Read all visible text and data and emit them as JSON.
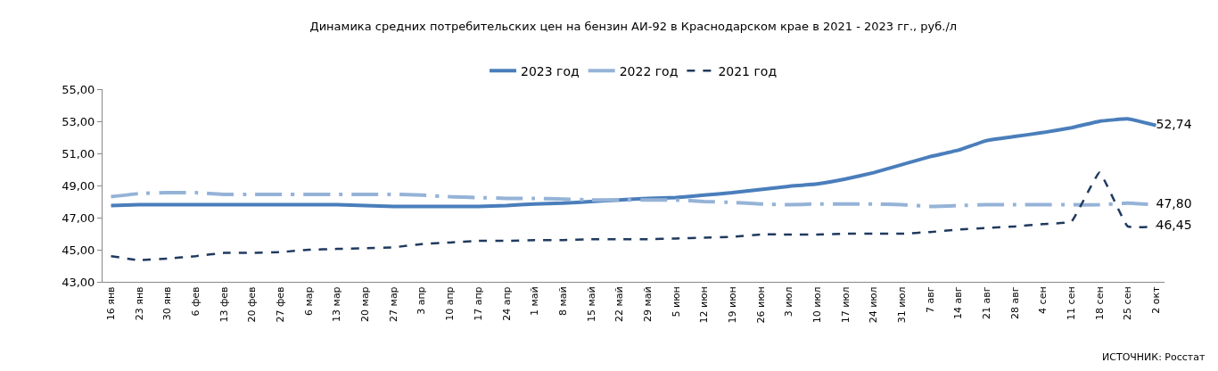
{
  "chart_data": {
    "type": "line",
    "title": "Динамика средних потребительских цен на бензин АИ-92 в Краснодарском крае в 2021 - 2023 гг., руб./л",
    "categories": [
      "16 янв",
      "23 янв",
      "30 янв",
      "6 фев",
      "13 фев",
      "20 фев",
      "27 фев",
      "6 мар",
      "13 мар",
      "20 мар",
      "27 мар",
      "3 апр",
      "10 апр",
      "17 апр",
      "24 апр",
      "1 май",
      "8 май",
      "15 май",
      "22 май",
      "29 май",
      "5 июн",
      "12 июн",
      "19 июн",
      "26 июн",
      "3 июл",
      "10 июл",
      "17 июл",
      "24 июл",
      "31 июл",
      "7 авг",
      "14 авг",
      "21 авг",
      "28 авг",
      "4 сен",
      "11 сен",
      "18 сен",
      "25 сен",
      "2 окт"
    ],
    "series": [
      {
        "name": "2023 год",
        "color": "#4a7ebb",
        "line_style": "solid",
        "values": [
          47.75,
          47.8,
          47.8,
          47.8,
          47.8,
          47.8,
          47.8,
          47.8,
          47.8,
          47.75,
          47.7,
          47.7,
          47.7,
          47.7,
          47.75,
          47.85,
          47.9,
          48.0,
          48.1,
          48.2,
          48.25,
          48.4,
          48.55,
          48.75,
          48.95,
          49.1,
          49.4,
          49.8,
          50.3,
          50.8,
          51.2,
          51.8,
          52.05,
          52.3,
          52.6,
          53.0,
          53.15,
          52.74
        ],
        "value_labels": [
          null,
          null,
          null,
          null,
          null,
          null,
          null,
          null,
          null,
          null,
          null,
          null,
          null,
          null,
          null,
          null,
          null,
          null,
          null,
          null,
          null,
          null,
          null,
          null,
          null,
          null,
          null,
          null,
          null,
          null,
          null,
          null,
          null,
          null,
          null,
          null,
          null,
          "52,74"
        ]
      },
      {
        "name": "2022 год",
        "color": "#95b3d7",
        "line_style": "dashed",
        "values": [
          48.3,
          48.5,
          48.55,
          48.55,
          48.45,
          48.45,
          48.45,
          48.45,
          48.45,
          48.45,
          48.45,
          48.4,
          48.3,
          48.25,
          48.2,
          48.2,
          48.15,
          48.1,
          48.1,
          48.1,
          48.1,
          48.0,
          47.95,
          47.85,
          47.8,
          47.85,
          47.85,
          47.85,
          47.8,
          47.7,
          47.75,
          47.8,
          47.8,
          47.8,
          47.8,
          47.8,
          47.9,
          47.8
        ],
        "value_labels": [
          null,
          null,
          null,
          null,
          null,
          null,
          null,
          null,
          null,
          null,
          null,
          null,
          null,
          null,
          null,
          null,
          null,
          null,
          null,
          null,
          null,
          null,
          null,
          null,
          null,
          null,
          null,
          null,
          null,
          null,
          null,
          null,
          null,
          null,
          null,
          null,
          null,
          "47,80"
        ]
      },
      {
        "name": "2021 год",
        "color": "#1f3a5f",
        "line_style": "dashed",
        "values": [
          44.6,
          44.35,
          44.45,
          44.6,
          44.8,
          44.8,
          44.85,
          45.0,
          45.05,
          45.1,
          45.15,
          45.35,
          45.45,
          45.55,
          45.55,
          45.6,
          45.6,
          45.65,
          45.65,
          45.65,
          45.7,
          45.75,
          45.8,
          45.95,
          45.95,
          45.95,
          46.0,
          46.0,
          46.0,
          46.1,
          46.25,
          46.35,
          46.45,
          46.6,
          46.75,
          49.8,
          46.45,
          46.45
        ],
        "value_labels": [
          null,
          null,
          null,
          null,
          null,
          null,
          null,
          null,
          null,
          null,
          null,
          null,
          null,
          null,
          null,
          null,
          null,
          null,
          null,
          null,
          null,
          null,
          null,
          null,
          null,
          null,
          null,
          null,
          null,
          null,
          null,
          null,
          null,
          null,
          null,
          null,
          null,
          "46,45"
        ]
      }
    ],
    "ylim": [
      43,
      55
    ],
    "yticks": [
      {
        "value": 43,
        "label": "43,00"
      },
      {
        "value": 45,
        "label": "45,00"
      },
      {
        "value": 47,
        "label": "47,00"
      },
      {
        "value": 49,
        "label": "49,00"
      },
      {
        "value": 51,
        "label": "51,00"
      },
      {
        "value": 53,
        "label": "53,00"
      },
      {
        "value": 55,
        "label": "55,00"
      }
    ],
    "legend": "top",
    "marker": "none",
    "annotations": [
      "ИСТОЧНИК: Росстат"
    ]
  }
}
